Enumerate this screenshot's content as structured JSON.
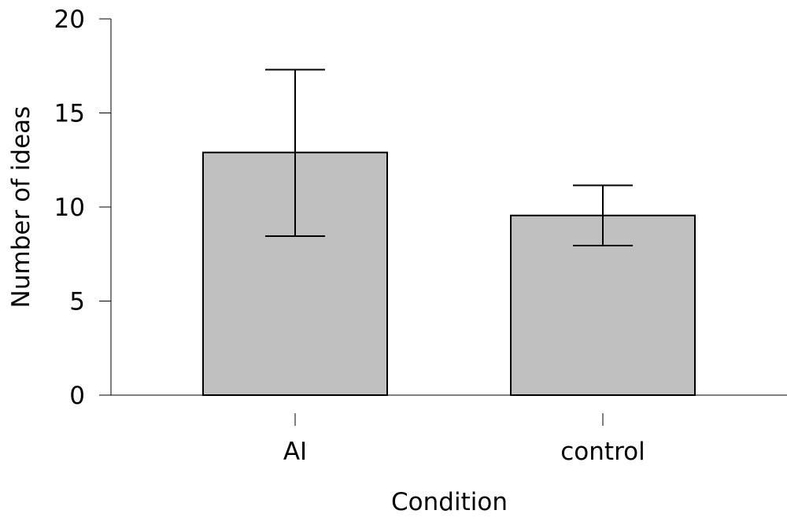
{
  "chart_data": {
    "type": "bar",
    "xlabel": "Condition",
    "ylabel": "Number of ideas",
    "categories": [
      "AI",
      "control"
    ],
    "values": [
      12.9,
      9.55
    ],
    "error_bars": [
      {
        "lower": 8.45,
        "upper": 17.3
      },
      {
        "lower": 7.95,
        "upper": 11.15
      }
    ],
    "ylim": [
      0,
      20
    ],
    "yticks": [
      0,
      5,
      10,
      15,
      20
    ],
    "grid": false,
    "bar_color": "#c0c0c0",
    "edge_color": "#000000"
  }
}
